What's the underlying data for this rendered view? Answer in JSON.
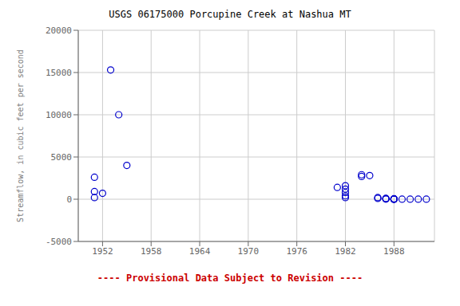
{
  "chart_data": {
    "type": "scatter",
    "title": "USGS 06175000 Porcupine Creek at Nashua MT",
    "y_label": "Streamflow, in cubic feet per second",
    "annotations": [
      {
        "text": "---- Provisional Data Subject to Revision ----",
        "color": "#CC0000"
      }
    ],
    "x": [
      1951,
      1951,
      1953,
      1954,
      1955,
      1951,
      1952,
      1981,
      1982,
      1982,
      1982,
      1982,
      1982,
      1984,
      1984,
      1985,
      1986,
      1986,
      1987,
      1987,
      1987,
      1988,
      1988,
      1988,
      1988,
      1988,
      1988,
      1989,
      1990,
      1991,
      1992
    ],
    "values": [
      900,
      200,
      15300,
      10000,
      4000,
      2600,
      700,
      1400,
      1600,
      1200,
      800,
      400,
      200,
      2900,
      2700,
      2800,
      200,
      100,
      100,
      50,
      20,
      50,
      30,
      20,
      10,
      10,
      10,
      10,
      10,
      10,
      10
    ],
    "color": "#0000CC",
    "marker": "circle",
    "xlim": [
      1949,
      1993
    ],
    "ylim": [
      -5000,
      20000
    ],
    "xticks": [
      1952,
      1958,
      1964,
      1970,
      1976,
      1982,
      1988
    ],
    "yticks": [
      -5000,
      0,
      5000,
      10000,
      15000,
      20000
    ],
    "grid": true
  }
}
